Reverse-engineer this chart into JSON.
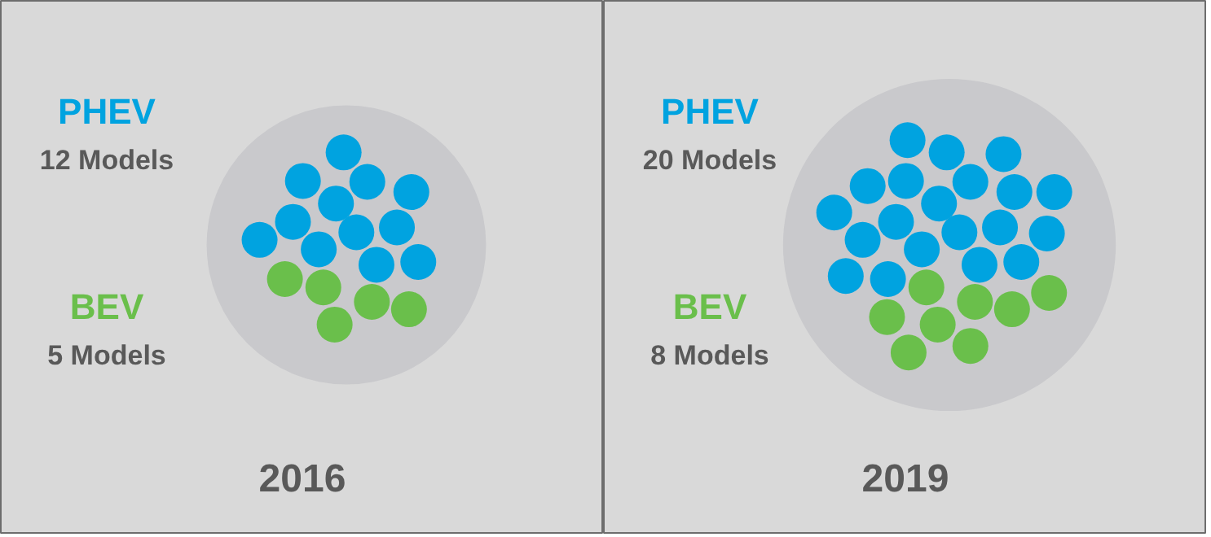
{
  "chart_data": [
    {
      "type": "other",
      "title": "2016",
      "categories": [
        "PHEV",
        "BEV"
      ],
      "values": [
        12,
        5
      ],
      "value_labels": [
        "12 Models",
        "5 Models"
      ],
      "colors": [
        "#00a3e0",
        "#6abf4b"
      ]
    },
    {
      "type": "other",
      "title": "2019",
      "categories": [
        "PHEV",
        "BEV"
      ],
      "values": [
        20,
        8
      ],
      "value_labels": [
        "20 Models",
        "8 Models"
      ],
      "colors": [
        "#00a3e0",
        "#6abf4b"
      ]
    }
  ]
}
